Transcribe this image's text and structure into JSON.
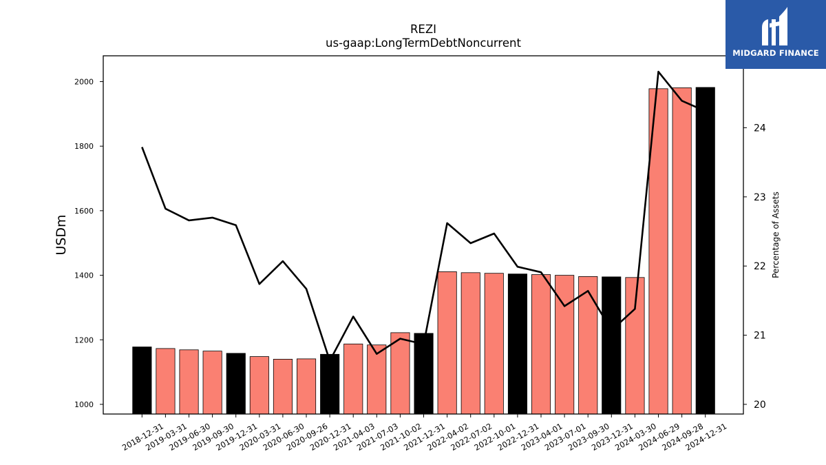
{
  "logo": {
    "text": "MIDGARD FINANCE",
    "background": "#2a5aa8",
    "text_color": "#ffffff"
  },
  "chart_data": {
    "type": "bar",
    "title": "REZI",
    "subtitle": "us-gaap:LongTermDebtNoncurrent",
    "ylabel": "USDm",
    "y2label": "Percentage of Assets",
    "ylim": [
      970,
      2080
    ],
    "y2lim": [
      19.86,
      25.04
    ],
    "yticks": [
      1000,
      1200,
      1400,
      1600,
      1800,
      2000
    ],
    "y2ticks": [
      20,
      21,
      22,
      23,
      24
    ],
    "grid": false,
    "colors": {
      "annual": "#000000",
      "quarterly": "#fa8072",
      "line": "#000000"
    },
    "categories": [
      "2018-12-31",
      "2019-03-31",
      "2019-06-30",
      "2019-09-30",
      "2019-12-31",
      "2020-03-31",
      "2020-06-30",
      "2020-09-26",
      "2020-12-31",
      "2021-04-03",
      "2021-07-03",
      "2021-10-02",
      "2021-12-31",
      "2022-04-02",
      "2022-07-02",
      "2022-10-01",
      "2022-12-31",
      "2023-04-01",
      "2023-07-01",
      "2023-09-30",
      "2023-12-31",
      "2024-03-30",
      "2024-06-29",
      "2024-09-28",
      "2024-12-31"
    ],
    "series": [
      {
        "type": "bar",
        "values": [
          1178,
          1173,
          1169,
          1165,
          1158,
          1148,
          1140,
          1141,
          1155,
          1187,
          1184,
          1222,
          1220,
          1411,
          1408,
          1406,
          1404,
          1402,
          1400,
          1396,
          1395,
          1393,
          1978,
          1981,
          1982
        ],
        "annual": [
          true,
          false,
          false,
          false,
          true,
          false,
          false,
          false,
          true,
          false,
          false,
          false,
          true,
          false,
          false,
          false,
          true,
          false,
          false,
          false,
          true,
          false,
          false,
          false,
          true
        ]
      },
      {
        "type": "line",
        "axis": "right",
        "values": [
          23.72,
          22.83,
          22.66,
          22.7,
          22.59,
          21.74,
          22.07,
          21.67,
          20.63,
          21.27,
          20.73,
          20.95,
          20.87,
          22.62,
          22.33,
          22.47,
          21.99,
          21.91,
          21.42,
          21.64,
          21.07,
          21.38,
          24.81,
          24.39,
          24.24
        ]
      }
    ]
  }
}
